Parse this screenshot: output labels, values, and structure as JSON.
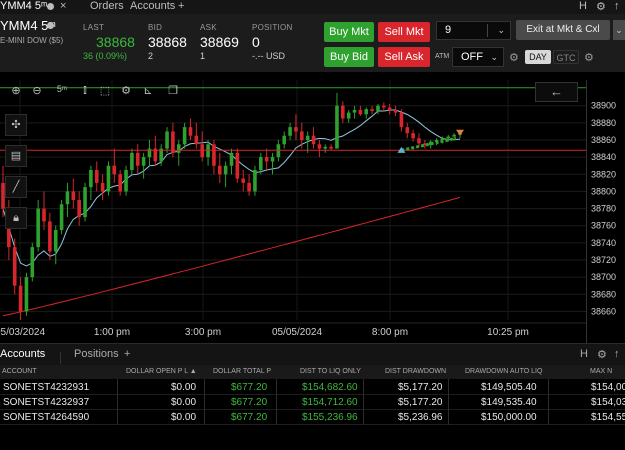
{
  "tabs": {
    "main_tab": "YMM4 5ᵐ",
    "orders": "Orders",
    "accounts": "Accounts",
    "add": "+",
    "right_icons": [
      "H",
      "⚙",
      "↑"
    ]
  },
  "quote": {
    "symbol": "YMM4 5ᵐ",
    "description": "E-MINI DOW ($5)",
    "last_label": "LAST",
    "last_value": "38868",
    "last_change": "36 (0.09%)",
    "bid_label": "BID",
    "bid_value": "38868",
    "bid_size": "2",
    "ask_label": "ASK",
    "ask_value": "38869",
    "ask_size": "1",
    "position_label": "POSITION",
    "position_value": "0",
    "position_pnl": "-.-- USD",
    "buy_mkt": "Buy Mkt",
    "sell_mkt": "Sell Mkt",
    "buy_bid": "Buy Bid",
    "sell_ask": "Sell Ask",
    "quantity": "9",
    "exit_label": "Exit at Mkt & Cxl",
    "atm_label": "ATM",
    "atm_value": "OFF",
    "tif_day": "DAY",
    "tif_gtc": "GTC"
  },
  "chart_toolbar": {
    "interval": "5ᵐ"
  },
  "chart_data": {
    "type": "candlestick",
    "symbol": "YMM4",
    "interval": "5m",
    "ylim": [
      38650,
      38930
    ],
    "y_ticks": [
      38660,
      38680,
      38700,
      38720,
      38740,
      38760,
      38780,
      38800,
      38820,
      38840,
      38860,
      38880,
      38900
    ],
    "x_ticks": [
      "05/03/2024",
      "1:00 pm",
      "3:00 pm",
      "05/05/2024",
      "8:00 pm",
      "10:25 pm"
    ],
    "price_lines": [
      {
        "label": "38921",
        "value": 38921,
        "color": "#2ea12e"
      },
      {
        "label": "38848",
        "value": 38848,
        "color": "#d8262c"
      }
    ],
    "colors": {
      "up": "#2ea12e",
      "down": "#d8262c",
      "fast_ma": "#8fc7e0",
      "slow_ma": "#d8262c"
    },
    "candles": [
      [
        38810,
        38830,
        38770,
        38780
      ],
      [
        38780,
        38790,
        38720,
        38735
      ],
      [
        38735,
        38745,
        38680,
        38690
      ],
      [
        38690,
        38700,
        38650,
        38660
      ],
      [
        38660,
        38705,
        38655,
        38700
      ],
      [
        38700,
        38740,
        38695,
        38735
      ],
      [
        38735,
        38790,
        38730,
        38780
      ],
      [
        38780,
        38800,
        38755,
        38765
      ],
      [
        38765,
        38775,
        38720,
        38730
      ],
      [
        38730,
        38760,
        38715,
        38755
      ],
      [
        38755,
        38790,
        38750,
        38785
      ],
      [
        38785,
        38810,
        38770,
        38800
      ],
      [
        38800,
        38815,
        38780,
        38790
      ],
      [
        38790,
        38800,
        38760,
        38770
      ],
      [
        38770,
        38810,
        38765,
        38805
      ],
      [
        38805,
        38830,
        38790,
        38825
      ],
      [
        38825,
        38835,
        38800,
        38810
      ],
      [
        38810,
        38820,
        38790,
        38800
      ],
      [
        38800,
        38835,
        38795,
        38830
      ],
      [
        38830,
        38850,
        38810,
        38820
      ],
      [
        38820,
        38825,
        38795,
        38800
      ],
      [
        38800,
        38830,
        38795,
        38825
      ],
      [
        38825,
        38850,
        38820,
        38845
      ],
      [
        38845,
        38855,
        38820,
        38830
      ],
      [
        38830,
        38845,
        38815,
        38840
      ],
      [
        38840,
        38860,
        38830,
        38850
      ],
      [
        38850,
        38865,
        38830,
        38835
      ],
      [
        38835,
        38855,
        38830,
        38850
      ],
      [
        38850,
        38875,
        38845,
        38870
      ],
      [
        38870,
        38880,
        38840,
        38845
      ],
      [
        38845,
        38860,
        38830,
        38855
      ],
      [
        38855,
        38880,
        38850,
        38875
      ],
      [
        38875,
        38885,
        38860,
        38865
      ],
      [
        38865,
        38880,
        38850,
        38855
      ],
      [
        38855,
        38870,
        38835,
        38840
      ],
      [
        38840,
        38860,
        38830,
        38855
      ],
      [
        38855,
        38860,
        38820,
        38830
      ],
      [
        38830,
        38845,
        38810,
        38820
      ],
      [
        38820,
        38835,
        38805,
        38830
      ],
      [
        38830,
        38850,
        38820,
        38845
      ],
      [
        38845,
        38850,
        38810,
        38815
      ],
      [
        38815,
        38825,
        38800,
        38810
      ],
      [
        38810,
        38820,
        38795,
        38800
      ],
      [
        38800,
        38830,
        38795,
        38825
      ],
      [
        38825,
        38845,
        38820,
        38840
      ],
      [
        38840,
        38850,
        38825,
        38835
      ],
      [
        38835,
        38845,
        38820,
        38840
      ],
      [
        38840,
        38860,
        38835,
        38855
      ],
      [
        38855,
        38870,
        38850,
        38865
      ],
      [
        38865,
        38880,
        38860,
        38875
      ],
      [
        38875,
        38890,
        38860,
        38870
      ],
      [
        38870,
        38880,
        38850,
        38860
      ],
      [
        38860,
        38870,
        38845,
        38865
      ],
      [
        38865,
        38875,
        38850,
        38855
      ],
      [
        38855,
        38860,
        38840,
        38850
      ],
      [
        38850,
        38855,
        38845,
        38852
      ],
      [
        38852,
        38855,
        38848,
        38850
      ],
      [
        38850,
        38915,
        38850,
        38900
      ],
      [
        38900,
        38905,
        38880,
        38885
      ],
      [
        38885,
        38895,
        38880,
        38892
      ],
      [
        38892,
        38900,
        38885,
        38895
      ],
      [
        38895,
        38900,
        38888,
        38890
      ],
      [
        38890,
        38898,
        38885,
        38896
      ],
      [
        38896,
        38900,
        38890,
        38894
      ],
      [
        38894,
        38902,
        38890,
        38900
      ],
      [
        38900,
        38904,
        38893,
        38898
      ],
      [
        38898,
        38902,
        38890,
        38895
      ],
      [
        38895,
        38900,
        38888,
        38892
      ],
      [
        38892,
        38896,
        38870,
        38875
      ],
      [
        38875,
        38880,
        38862,
        38868
      ],
      [
        38868,
        38872,
        38858,
        38862
      ],
      [
        38862,
        38868,
        38852,
        38856
      ],
      [
        38856,
        38860,
        38850,
        38854
      ],
      [
        38854,
        38860,
        38850,
        38858
      ],
      [
        38858,
        38862,
        38854,
        38860
      ],
      [
        38860,
        38864,
        38856,
        38862
      ],
      [
        38862,
        38866,
        38858,
        38864
      ],
      [
        38864,
        38868,
        38860,
        38866
      ],
      [
        38866,
        38870,
        38862,
        38868
      ]
    ]
  },
  "accounts_panel": {
    "tab_accounts": "Accounts",
    "tab_positions": "Positions",
    "add": "+",
    "columns": [
      "ACCOUNT",
      "DOLLAR OPEN P L ▲",
      "DOLLAR TOTAL P",
      "DIST TO LIQ ONLY",
      "DIST DRAWDOWN",
      "DRAWDOWN AUTO LIQ",
      "MAX N"
    ],
    "rows": [
      {
        "account": "SONETST4232931",
        "open_pl": "$0.00",
        "total_pl": "$677.20",
        "dist_liq": "$154,682.60",
        "dist_dd": "$5,177.20",
        "dd_auto_liq": "$149,505.40",
        "max": "$154,00"
      },
      {
        "account": "SONETST4232937",
        "open_pl": "$0.00",
        "total_pl": "$677.20",
        "dist_liq": "$154,712.60",
        "dist_dd": "$5,177.20",
        "dd_auto_liq": "$149,535.40",
        "max": "$154,03"
      },
      {
        "account": "SONETST4264590",
        "open_pl": "$0.00",
        "total_pl": "$677.20",
        "dist_liq": "$155,236.96",
        "dist_dd": "$5,236.96",
        "dd_auto_liq": "$150,000.00",
        "max": "$154,55"
      }
    ]
  }
}
